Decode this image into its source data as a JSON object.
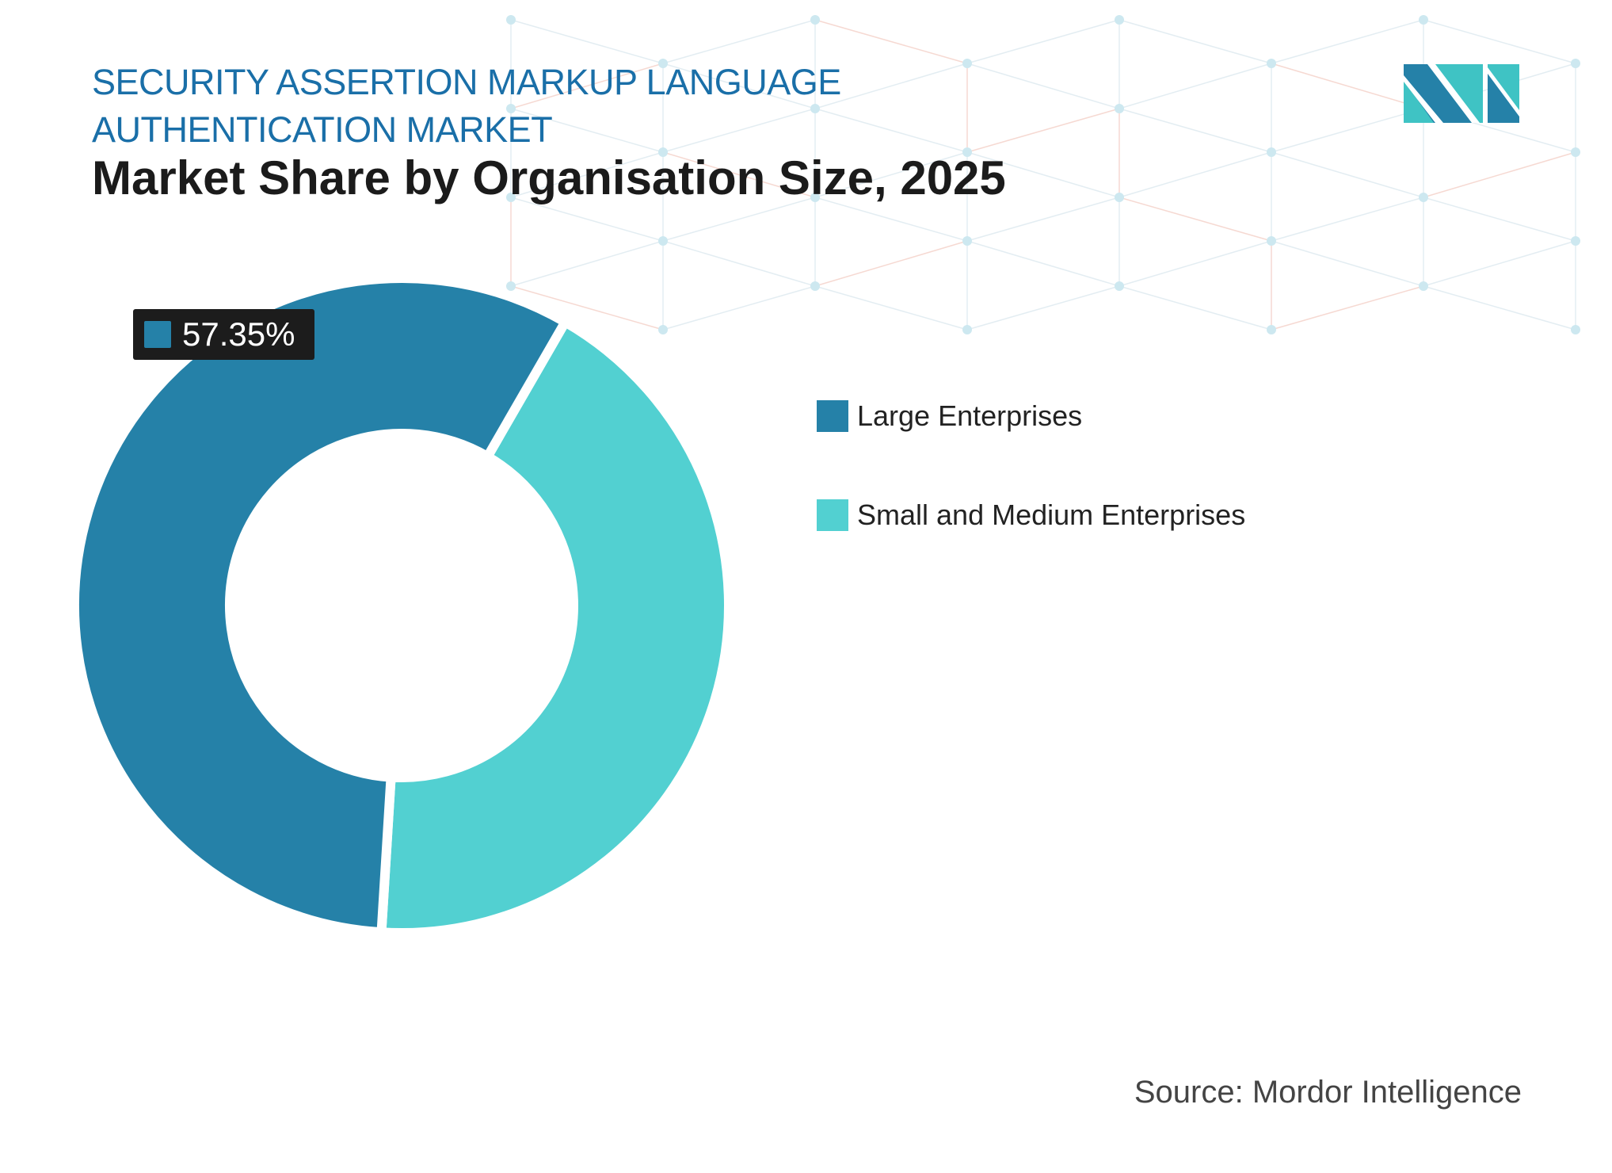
{
  "header": {
    "title_line1": "SECURITY ASSERTION MARKUP LANGUAGE",
    "title_line2": "AUTHENTICATION MARKET",
    "subtitle": "Market Share by Organisation Size, 2025"
  },
  "chart_data": {
    "type": "pie",
    "subtype": "donut",
    "title": "Market Share by Organisation Size, 2025",
    "categories": [
      "Large Enterprises",
      "Small and Medium Enterprises"
    ],
    "values": [
      57.35,
      42.65
    ],
    "colors": [
      "#2581a8",
      "#52d0d1"
    ],
    "data_labels": [
      "57.35%"
    ],
    "legend_position": "right"
  },
  "legend": [
    {
      "label": "Large Enterprises",
      "color": "#2581a8"
    },
    {
      "label": "Small and Medium Enterprises",
      "color": "#52d0d1"
    }
  ],
  "callout": {
    "text": "57.35%",
    "color": "#2581a8"
  },
  "footer": {
    "source": "Source: Mordor Intelligence"
  },
  "logo": {
    "colors": [
      "#2581a8",
      "#3fc3c4"
    ]
  }
}
